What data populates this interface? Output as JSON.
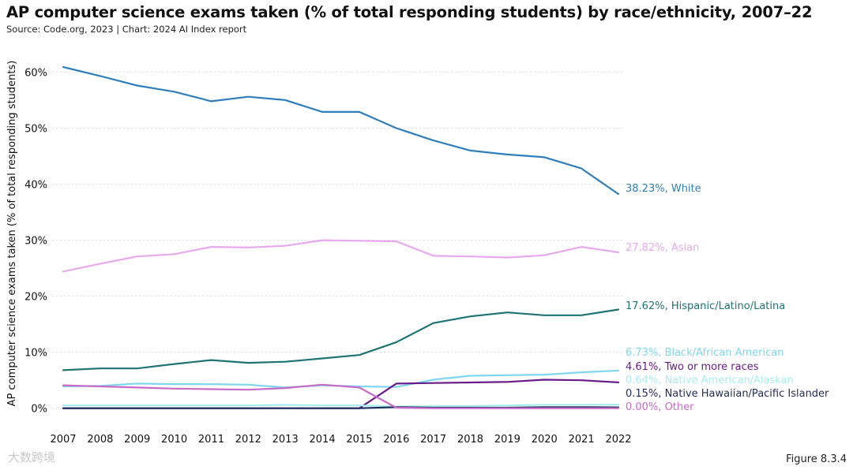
{
  "title": "AP computer science exams taken (% of total responding students) by race/ethnicity, 2007–22",
  "source": "Source: Code.org, 2023 | Chart: 2024 AI Index report",
  "figure_label": "Figure 8.3.4",
  "watermark": "大数跨境",
  "chart_data": {
    "type": "line",
    "title": "AP computer science exams taken (% of total responding students) by race/ethnicity, 2007–22",
    "xlabel": "",
    "ylabel": "AP computer science exams taken (% of total responding students)",
    "x": [
      2007,
      2008,
      2009,
      2010,
      2011,
      2012,
      2013,
      2014,
      2015,
      2016,
      2017,
      2018,
      2019,
      2020,
      2021,
      2022
    ],
    "ylim": [
      -3,
      64
    ],
    "yticks": [
      0,
      10,
      20,
      30,
      40,
      50,
      60
    ],
    "ytick_labels": [
      "0%",
      "10%",
      "20%",
      "30%",
      "40%",
      "50%",
      "60%"
    ],
    "grid": "horizontal",
    "series": [
      {
        "name": "White",
        "color": "#2f7ebc",
        "end_label": "38.23%, White",
        "values": [
          60.9,
          59.3,
          57.6,
          56.5,
          54.8,
          55.6,
          55.0,
          52.9,
          52.9,
          50.0,
          47.8,
          46.0,
          45.3,
          44.8,
          42.8,
          38.23
        ]
      },
      {
        "name": "Asian",
        "color": "#e8a8ee",
        "end_label": "27.82%, Asian",
        "values": [
          24.4,
          25.8,
          27.1,
          27.5,
          28.8,
          28.7,
          29.0,
          30.0,
          29.9,
          29.8,
          27.2,
          27.1,
          26.9,
          27.3,
          28.8,
          27.82
        ]
      },
      {
        "name": "Hispanic/Latino/Latina",
        "color": "#1f7372",
        "end_label": "17.62%, Hispanic/Latino/Latina",
        "values": [
          6.8,
          7.1,
          7.1,
          7.9,
          8.6,
          8.1,
          8.3,
          8.9,
          9.5,
          11.8,
          15.2,
          16.4,
          17.1,
          16.6,
          16.6,
          17.62
        ]
      },
      {
        "name": "Black/African American",
        "color": "#7fd6ef",
        "end_label": "6.73%, Black/African American",
        "values": [
          3.9,
          4.0,
          4.4,
          4.3,
          4.3,
          4.2,
          3.7,
          4.1,
          3.9,
          3.8,
          5.1,
          5.8,
          5.9,
          6.0,
          6.4,
          6.73
        ]
      },
      {
        "name": "Two or more races",
        "color": "#6a1b8a",
        "end_label": "4.61%, Two or more races",
        "values": [
          0.0,
          0.0,
          0.0,
          0.0,
          0.0,
          0.0,
          0.0,
          0.0,
          0.0,
          4.4,
          4.5,
          4.6,
          4.7,
          5.1,
          5.0,
          4.61
        ]
      },
      {
        "name": "Native American/Alaskan",
        "color": "#a8ecee",
        "end_label": "0.64%, Native American/Alaskan",
        "values": [
          0.5,
          0.5,
          0.5,
          0.5,
          0.5,
          0.5,
          0.6,
          0.5,
          0.5,
          0.3,
          0.4,
          0.4,
          0.5,
          0.6,
          0.6,
          0.64
        ]
      },
      {
        "name": "Native Hawaiian/Pacific Islander",
        "color": "#1f2e5c",
        "end_label": "0.15%, Native Hawaiian/Pacific Islander",
        "values": [
          0.0,
          0.0,
          0.0,
          0.0,
          0.0,
          0.0,
          0.0,
          0.0,
          0.0,
          0.2,
          0.1,
          0.1,
          0.1,
          0.2,
          0.2,
          0.15
        ]
      },
      {
        "name": "Other",
        "color": "#c86bc8",
        "end_label": "0.00%, Other",
        "values": [
          4.1,
          3.9,
          3.7,
          3.5,
          3.4,
          3.3,
          3.6,
          4.2,
          3.7,
          0.1,
          0.0,
          0.0,
          0.0,
          0.0,
          0.0,
          0.0
        ]
      }
    ]
  }
}
